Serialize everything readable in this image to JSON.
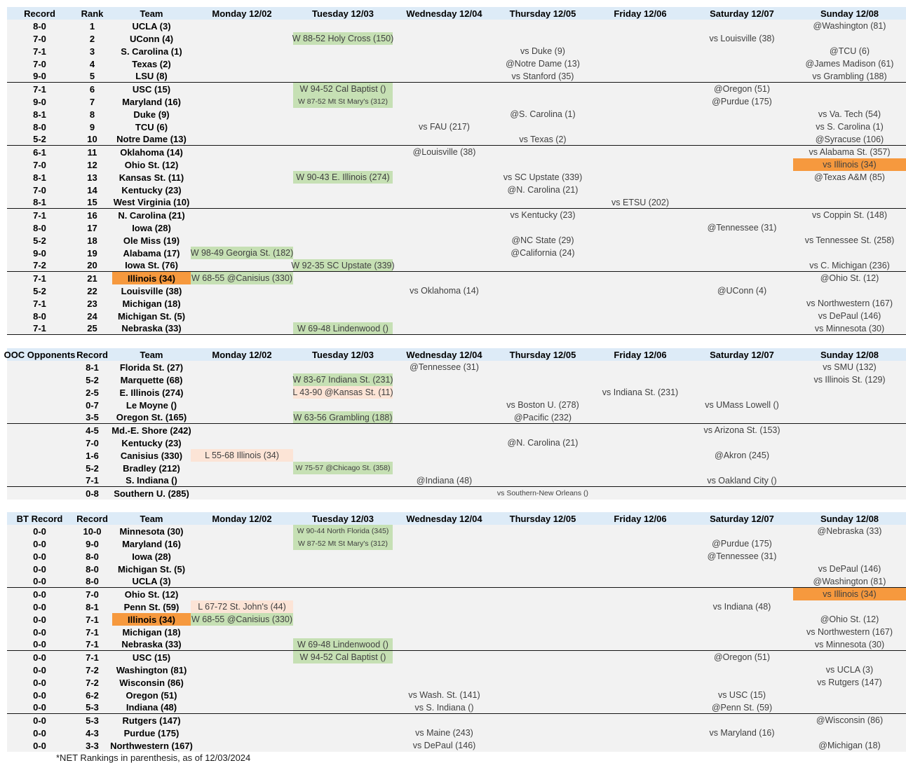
{
  "colors": {
    "header_bg": "#DDEBF7",
    "body_bg": "#F2F2F2",
    "win_bg": "#C6E0B4",
    "loss_bg": "#FCE4D6",
    "highlight_orange": "#F6993E",
    "group_border": "#141414"
  },
  "day_headers": [
    "Monday 12/02",
    "Tuesday 12/03",
    "Wednesday 12/04",
    "Thursday 12/05",
    "Friday 12/06",
    "Saturday 12/07",
    "Sunday 12/08"
  ],
  "footnote": "*NET Rankings in parenthesis, as of 12/03/2024",
  "sections": [
    {
      "id": "top25",
      "col1_label": "Record",
      "col2_label": "Rank",
      "team_label": "Team",
      "rows": [
        {
          "c1": "8-0",
          "c2": "1",
          "team": "UCLA (3)",
          "games": [
            {
              "day": 6,
              "text": "@Washington (81)"
            }
          ]
        },
        {
          "c1": "7-0",
          "c2": "2",
          "team": "UConn (4)",
          "games": [
            {
              "day": 1,
              "text": "W 88-52 Holy Cross (150)",
              "hl": "win"
            },
            {
              "day": 5,
              "text": "vs Louisville (38)"
            }
          ]
        },
        {
          "c1": "7-1",
          "c2": "3",
          "team": "S. Carolina (1)",
          "games": [
            {
              "day": 3,
              "text": "vs Duke (9)"
            },
            {
              "day": 6,
              "text": "@TCU (6)"
            }
          ]
        },
        {
          "c1": "7-0",
          "c2": "4",
          "team": "Texas (2)",
          "games": [
            {
              "day": 3,
              "text": "@Notre Dame (13)"
            },
            {
              "day": 6,
              "text": "@James Madison (61)"
            }
          ]
        },
        {
          "c1": "9-0",
          "c2": "5",
          "team": "LSU (8)",
          "group_end": true,
          "games": [
            {
              "day": 3,
              "text": "vs Stanford (35)"
            },
            {
              "day": 6,
              "text": "vs Grambling (188)"
            }
          ]
        },
        {
          "c1": "7-1",
          "c2": "6",
          "team": "USC (15)",
          "games": [
            {
              "day": 1,
              "text": "W 94-52 Cal Baptist ()",
              "hl": "win"
            },
            {
              "day": 5,
              "text": "@Oregon (51)"
            }
          ]
        },
        {
          "c1": "9-0",
          "c2": "7",
          "team": "Maryland (16)",
          "games": [
            {
              "day": 1,
              "text": "W 87-52 Mt St Mary's (312)",
              "hl": "win",
              "small": true
            },
            {
              "day": 5,
              "text": "@Purdue (175)"
            }
          ]
        },
        {
          "c1": "8-1",
          "c2": "8",
          "team": "Duke (9)",
          "games": [
            {
              "day": 3,
              "text": "@S. Carolina (1)"
            },
            {
              "day": 6,
              "text": "vs Va. Tech (54)"
            }
          ]
        },
        {
          "c1": "8-0",
          "c2": "9",
          "team": "TCU (6)",
          "games": [
            {
              "day": 2,
              "text": "vs FAU (217)"
            },
            {
              "day": 6,
              "text": "vs S. Carolina (1)"
            }
          ]
        },
        {
          "c1": "5-2",
          "c2": "10",
          "team": "Notre Dame (13)",
          "group_end": true,
          "games": [
            {
              "day": 3,
              "text": "vs Texas (2)"
            },
            {
              "day": 6,
              "text": "@Syracuse (106)"
            }
          ]
        },
        {
          "c1": "6-1",
          "c2": "11",
          "team": "Oklahoma (14)",
          "games": [
            {
              "day": 2,
              "text": "@Louisville (38)"
            },
            {
              "day": 6,
              "text": "vs Alabama St. (357)"
            }
          ]
        },
        {
          "c1": "7-0",
          "c2": "12",
          "team": "Ohio St. (12)",
          "games": [
            {
              "day": 6,
              "text": "vs Illinois (34)",
              "hl": "orange"
            }
          ]
        },
        {
          "c1": "8-1",
          "c2": "13",
          "team": "Kansas St. (11)",
          "games": [
            {
              "day": 1,
              "text": "W 90-43 E. Illinois (274)",
              "hl": "win"
            },
            {
              "day": 3,
              "text": "vs SC Upstate (339)"
            },
            {
              "day": 6,
              "text": "@Texas A&M (85)"
            }
          ]
        },
        {
          "c1": "7-0",
          "c2": "14",
          "team": "Kentucky (23)",
          "games": [
            {
              "day": 3,
              "text": "@N. Carolina (21)"
            }
          ]
        },
        {
          "c1": "8-1",
          "c2": "15",
          "team": "West Virginia (10)",
          "group_end": true,
          "games": [
            {
              "day": 4,
              "text": "vs ETSU (202)"
            }
          ]
        },
        {
          "c1": "7-1",
          "c2": "16",
          "team": "N. Carolina (21)",
          "games": [
            {
              "day": 3,
              "text": "vs Kentucky (23)"
            },
            {
              "day": 6,
              "text": "vs Coppin St. (148)"
            }
          ]
        },
        {
          "c1": "8-0",
          "c2": "17",
          "team": "Iowa (28)",
          "games": [
            {
              "day": 5,
              "text": "@Tennessee (31)"
            }
          ]
        },
        {
          "c1": "5-2",
          "c2": "18",
          "team": "Ole Miss (19)",
          "games": [
            {
              "day": 3,
              "text": "@NC State (29)"
            },
            {
              "day": 6,
              "text": "vs Tennessee St. (258)"
            }
          ]
        },
        {
          "c1": "9-0",
          "c2": "19",
          "team": "Alabama (17)",
          "games": [
            {
              "day": 0,
              "text": "W 98-49 Georgia St. (182)",
              "hl": "win"
            },
            {
              "day": 3,
              "text": "@California (24)"
            }
          ]
        },
        {
          "c1": "7-2",
          "c2": "20",
          "team": "Iowa St. (76)",
          "group_end": true,
          "games": [
            {
              "day": 1,
              "text": "W 92-35 SC Upstate (339)",
              "hl": "win"
            },
            {
              "day": 6,
              "text": "vs C. Michigan (236)"
            }
          ]
        },
        {
          "c1": "7-1",
          "c2": "21",
          "team": "Illinois (34)",
          "team_hl": true,
          "games": [
            {
              "day": 0,
              "text": "W 68-55 @Canisius (330)",
              "hl": "win"
            },
            {
              "day": 6,
              "text": "@Ohio St. (12)"
            }
          ]
        },
        {
          "c1": "5-2",
          "c2": "22",
          "team": "Louisville (38)",
          "games": [
            {
              "day": 2,
              "text": "vs Oklahoma (14)"
            },
            {
              "day": 5,
              "text": "@UConn (4)"
            }
          ]
        },
        {
          "c1": "7-1",
          "c2": "23",
          "team": "Michigan (18)",
          "games": [
            {
              "day": 6,
              "text": "vs Northwestern (167)"
            }
          ]
        },
        {
          "c1": "8-0",
          "c2": "24",
          "team": "Michigan St. (5)",
          "games": [
            {
              "day": 6,
              "text": "vs DePaul (146)"
            }
          ]
        },
        {
          "c1": "7-1",
          "c2": "25",
          "team": "Nebraska (33)",
          "group_end": true,
          "games": [
            {
              "day": 1,
              "text": "W 69-48 Lindenwood ()",
              "hl": "win"
            },
            {
              "day": 6,
              "text": "vs Minnesota (30)"
            }
          ]
        }
      ]
    },
    {
      "id": "ooc-opponents",
      "col1_label": "OOC Opponents",
      "col2_label": "Record",
      "team_label": "Team",
      "rows": [
        {
          "c1": "",
          "c2": "8-1",
          "team": "Florida St. (27)",
          "games": [
            {
              "day": 2,
              "text": "@Tennessee (31)"
            },
            {
              "day": 6,
              "text": "vs SMU (132)"
            }
          ]
        },
        {
          "c1": "",
          "c2": "5-2",
          "team": "Marquette (68)",
          "games": [
            {
              "day": 1,
              "text": "W 83-67 Indiana St. (231)",
              "hl": "win"
            },
            {
              "day": 6,
              "text": "vs Illinois St. (129)"
            }
          ]
        },
        {
          "c1": "",
          "c2": "2-5",
          "team": "E. Illinois (274)",
          "games": [
            {
              "day": 1,
              "text": "L 43-90 @Kansas St. (11)",
              "hl": "loss"
            },
            {
              "day": 4,
              "text": "vs Indiana St. (231)"
            }
          ]
        },
        {
          "c1": "",
          "c2": "0-7",
          "team": "Le Moyne ()",
          "games": [
            {
              "day": 3,
              "text": "vs Boston U. (278)"
            },
            {
              "day": 5,
              "text": "vs UMass Lowell ()"
            }
          ]
        },
        {
          "c1": "",
          "c2": "3-5",
          "team": "Oregon St. (165)",
          "group_end": true,
          "games": [
            {
              "day": 1,
              "text": "W 63-56 Grambling (188)",
              "hl": "win"
            },
            {
              "day": 3,
              "text": "@Pacific (232)"
            }
          ]
        },
        {
          "c1": "",
          "c2": "4-5",
          "team": "Md.-E. Shore (242)",
          "games": [
            {
              "day": 5,
              "text": "vs Arizona St. (153)"
            }
          ]
        },
        {
          "c1": "",
          "c2": "7-0",
          "team": "Kentucky (23)",
          "games": [
            {
              "day": 3,
              "text": "@N. Carolina (21)"
            }
          ]
        },
        {
          "c1": "",
          "c2": "1-6",
          "team": "Canisius (330)",
          "games": [
            {
              "day": 0,
              "text": "L 55-68 Illinois (34)",
              "hl": "loss"
            },
            {
              "day": 5,
              "text": "@Akron (245)"
            }
          ]
        },
        {
          "c1": "",
          "c2": "5-2",
          "team": "Bradley (212)",
          "games": [
            {
              "day": 1,
              "text": "W 75-57 @Chicago St. (358)",
              "hl": "win",
              "small": true
            }
          ]
        },
        {
          "c1": "",
          "c2": "7-1",
          "team": "S. Indiana ()",
          "group_end": true,
          "games": [
            {
              "day": 2,
              "text": "@Indiana (48)"
            },
            {
              "day": 5,
              "text": "vs Oakland City ()"
            }
          ]
        },
        {
          "c1": "",
          "c2": "0-8",
          "team": "Southern U. (285)",
          "games": [
            {
              "day": 3,
              "text": "vs Southern-New Orleans ()",
              "small": true
            }
          ]
        }
      ]
    },
    {
      "id": "big-ten",
      "col1_label": "BT Record",
      "col2_label": "Record",
      "team_label": "Team",
      "rows": [
        {
          "c1": "0-0",
          "c2": "10-0",
          "team": "Minnesota (30)",
          "games": [
            {
              "day": 1,
              "text": "W 90-44 North Florida (345)",
              "hl": "win",
              "small": true
            },
            {
              "day": 6,
              "text": "@Nebraska (33)"
            }
          ]
        },
        {
          "c1": "0-0",
          "c2": "9-0",
          "team": "Maryland (16)",
          "games": [
            {
              "day": 1,
              "text": "W 87-52 Mt St Mary's (312)",
              "hl": "win",
              "small": true
            },
            {
              "day": 5,
              "text": "@Purdue (175)"
            }
          ]
        },
        {
          "c1": "0-0",
          "c2": "8-0",
          "team": "Iowa (28)",
          "games": [
            {
              "day": 5,
              "text": "@Tennessee (31)"
            }
          ]
        },
        {
          "c1": "0-0",
          "c2": "8-0",
          "team": "Michigan St. (5)",
          "games": [
            {
              "day": 6,
              "text": "vs DePaul (146)"
            }
          ]
        },
        {
          "c1": "0-0",
          "c2": "8-0",
          "team": "UCLA (3)",
          "group_end": true,
          "games": [
            {
              "day": 6,
              "text": "@Washington (81)"
            }
          ]
        },
        {
          "c1": "0-0",
          "c2": "7-0",
          "team": "Ohio St. (12)",
          "games": [
            {
              "day": 6,
              "text": "vs Illinois (34)",
              "hl": "orange"
            }
          ]
        },
        {
          "c1": "0-0",
          "c2": "8-1",
          "team": "Penn St. (59)",
          "games": [
            {
              "day": 0,
              "text": "L 67-72 St. John's (44)",
              "hl": "loss"
            },
            {
              "day": 5,
              "text": "vs Indiana (48)"
            }
          ]
        },
        {
          "c1": "0-0",
          "c2": "7-1",
          "team": "Illinois (34)",
          "team_hl": true,
          "games": [
            {
              "day": 0,
              "text": "W 68-55 @Canisius (330)",
              "hl": "win"
            },
            {
              "day": 6,
              "text": "@Ohio St. (12)"
            }
          ]
        },
        {
          "c1": "0-0",
          "c2": "7-1",
          "team": "Michigan (18)",
          "games": [
            {
              "day": 6,
              "text": "vs Northwestern (167)"
            }
          ]
        },
        {
          "c1": "0-0",
          "c2": "7-1",
          "team": "Nebraska (33)",
          "group_end": true,
          "games": [
            {
              "day": 1,
              "text": "W 69-48 Lindenwood ()",
              "hl": "win"
            },
            {
              "day": 6,
              "text": "vs Minnesota (30)"
            }
          ]
        },
        {
          "c1": "0-0",
          "c2": "7-1",
          "team": "USC (15)",
          "games": [
            {
              "day": 1,
              "text": "W 94-52 Cal Baptist ()",
              "hl": "win"
            },
            {
              "day": 5,
              "text": "@Oregon (51)"
            }
          ]
        },
        {
          "c1": "0-0",
          "c2": "7-2",
          "team": "Washington (81)",
          "games": [
            {
              "day": 6,
              "text": "vs UCLA (3)"
            }
          ]
        },
        {
          "c1": "0-0",
          "c2": "7-2",
          "team": "Wisconsin (86)",
          "games": [
            {
              "day": 6,
              "text": "vs Rutgers (147)"
            }
          ]
        },
        {
          "c1": "0-0",
          "c2": "6-2",
          "team": "Oregon (51)",
          "games": [
            {
              "day": 2,
              "text": "vs Wash. St. (141)"
            },
            {
              "day": 5,
              "text": "vs USC (15)"
            }
          ]
        },
        {
          "c1": "0-0",
          "c2": "5-3",
          "team": "Indiana (48)",
          "group_end": true,
          "games": [
            {
              "day": 2,
              "text": "vs S. Indiana ()"
            },
            {
              "day": 5,
              "text": "@Penn St. (59)"
            }
          ]
        },
        {
          "c1": "0-0",
          "c2": "5-3",
          "team": "Rutgers (147)",
          "games": [
            {
              "day": 6,
              "text": "@Wisconsin (86)"
            }
          ]
        },
        {
          "c1": "0-0",
          "c2": "4-3",
          "team": "Purdue (175)",
          "games": [
            {
              "day": 2,
              "text": "vs Maine (243)"
            },
            {
              "day": 5,
              "text": "vs Maryland (16)"
            }
          ]
        },
        {
          "c1": "0-0",
          "c2": "3-3",
          "team": "Northwestern (167)",
          "games": [
            {
              "day": 2,
              "text": "vs DePaul (146)"
            },
            {
              "day": 6,
              "text": "@Michigan (18)"
            }
          ]
        }
      ]
    }
  ]
}
